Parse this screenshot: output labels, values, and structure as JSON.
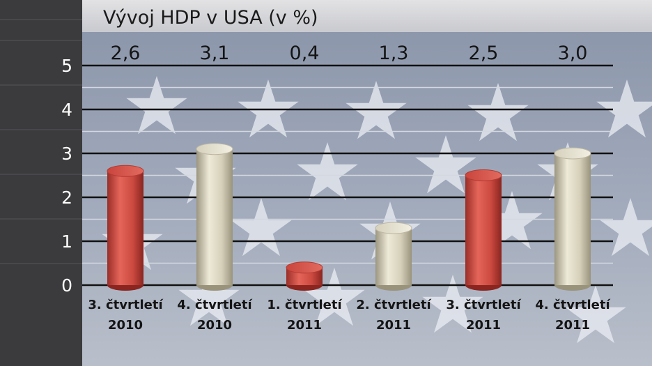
{
  "chart_data": {
    "type": "bar",
    "title": "Vývoj HDP v USA (v %)",
    "categories": [
      [
        "3. čtvrtletí",
        "2010"
      ],
      [
        "4. čtvrtletí",
        "2010"
      ],
      [
        "1. čtvrtletí",
        "2011"
      ],
      [
        "2. čtvrtletí",
        "2011"
      ],
      [
        "3. čtvrtletí",
        "2011"
      ],
      [
        "4. čtvrtletí",
        "2011"
      ]
    ],
    "values": [
      2.6,
      3.1,
      0.4,
      1.3,
      2.5,
      3.0
    ],
    "value_labels": [
      "2,6",
      "3,1",
      "0,4",
      "1,3",
      "2,5",
      "3,0"
    ],
    "yticks": [
      "0",
      "1",
      "2",
      "3",
      "4",
      "5"
    ],
    "ylim": [
      0,
      5
    ],
    "xlabel": "",
    "ylabel": "",
    "grid": true,
    "bar_colors": [
      "#d9584f",
      "#d9d4c0",
      "#d9584f",
      "#d9d4c0",
      "#d9584f",
      "#d9d4c0"
    ],
    "background": "flag-stars"
  }
}
